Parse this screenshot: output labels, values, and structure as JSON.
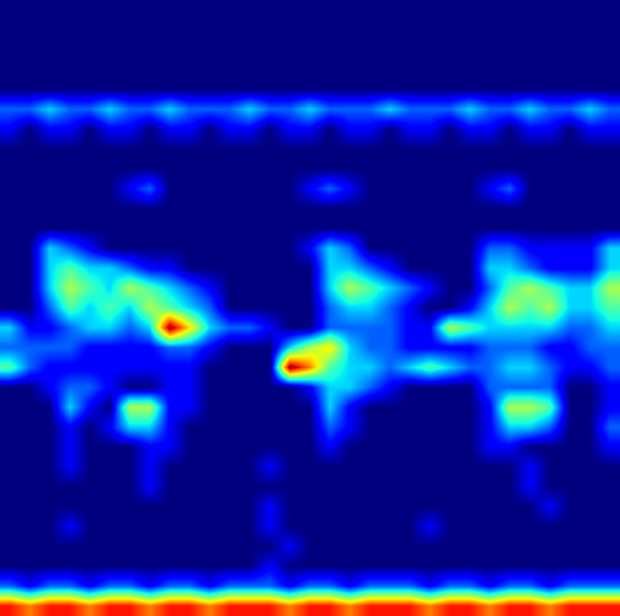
{
  "chart_data": {
    "type": "heatmap",
    "color": "jet",
    "tick_labels": false,
    "cells": [
      [
        0,
        0,
        0,
        0,
        0,
        0,
        0,
        0,
        0,
        0,
        0,
        0,
        0,
        0,
        0,
        0,
        0,
        0,
        0,
        0,
        0,
        0,
        0,
        0,
        0,
        0,
        0,
        0,
        0,
        0,
        0
      ],
      [
        0,
        0,
        0,
        0,
        0,
        0,
        0,
        0,
        0,
        0,
        0,
        0,
        0,
        0,
        0,
        0,
        0,
        0,
        0,
        0,
        0,
        0,
        0,
        0,
        0,
        0,
        0,
        0,
        0,
        0,
        0
      ],
      [
        0,
        0,
        0,
        0,
        0,
        0,
        0,
        0,
        0,
        0,
        0,
        0,
        0,
        0,
        0,
        0,
        0,
        0,
        0,
        0,
        0,
        0,
        0,
        0,
        0,
        0,
        0,
        0,
        0,
        0,
        0
      ],
      [
        0,
        0,
        0,
        0,
        0,
        0,
        0,
        0,
        0,
        0,
        0,
        0,
        0,
        0,
        0,
        0,
        0,
        0,
        0,
        0,
        0,
        0,
        0,
        0,
        0,
        0,
        0,
        0,
        0,
        0,
        0
      ],
      [
        0,
        0,
        0,
        0,
        0,
        0,
        0,
        0,
        0,
        0,
        0,
        0,
        0,
        0,
        0,
        0,
        0,
        0,
        0,
        0,
        0,
        0,
        0,
        0,
        0,
        0,
        0,
        0,
        0,
        0,
        0
      ],
      [
        2,
        2,
        3,
        2,
        2,
        3,
        2,
        2,
        3,
        2,
        2,
        2,
        3,
        2,
        2,
        3,
        2,
        2,
        2,
        3,
        2,
        2,
        2,
        3,
        2,
        2,
        3,
        2,
        2,
        3,
        2
      ],
      [
        1,
        0,
        1,
        1,
        0,
        1,
        1,
        0,
        1,
        1,
        0,
        1,
        1,
        0,
        1,
        1,
        0,
        1,
        1,
        0,
        1,
        1,
        0,
        1,
        1,
        0,
        1,
        1,
        0,
        1,
        1
      ],
      [
        0,
        0,
        0,
        0,
        0,
        0,
        0,
        0,
        0,
        0,
        0,
        0,
        0,
        0,
        0,
        0,
        0,
        0,
        0,
        0,
        0,
        0,
        0,
        0,
        0,
        0,
        0,
        0,
        0,
        0,
        0
      ],
      [
        0,
        0,
        0,
        0,
        0,
        0,
        0,
        0,
        0,
        0,
        0,
        0,
        0,
        0,
        0,
        0,
        0,
        0,
        0,
        0,
        0,
        0,
        0,
        0,
        0,
        0,
        0,
        0,
        0,
        0,
        0
      ],
      [
        0,
        0,
        0,
        0,
        0,
        0,
        1,
        2,
        0,
        0,
        0,
        0,
        0,
        0,
        0,
        1,
        2,
        1,
        0,
        0,
        0,
        0,
        0,
        0,
        1,
        2,
        0,
        0,
        0,
        0,
        0
      ],
      [
        0,
        0,
        0,
        0,
        0,
        0,
        0,
        0,
        0,
        0,
        0,
        0,
        0,
        0,
        0,
        0,
        0,
        0,
        0,
        0,
        0,
        0,
        0,
        0,
        0,
        0,
        0,
        0,
        0,
        0,
        0
      ],
      [
        0,
        0,
        0,
        0,
        0,
        0,
        0,
        0,
        0,
        0,
        0,
        0,
        0,
        0,
        0,
        0,
        0,
        0,
        0,
        0,
        0,
        0,
        0,
        0,
        0,
        0,
        0,
        0,
        0,
        0,
        0
      ],
      [
        0,
        0,
        3,
        2,
        1,
        0,
        0,
        0,
        0,
        0,
        0,
        0,
        0,
        0,
        0,
        1,
        3,
        2,
        0,
        0,
        0,
        0,
        0,
        0,
        2,
        2,
        1,
        1,
        1,
        1,
        3
      ],
      [
        0,
        0,
        3,
        4,
        3,
        3,
        2,
        1,
        1,
        0,
        0,
        0,
        0,
        0,
        0,
        0,
        3,
        3,
        2,
        1,
        0,
        0,
        0,
        0,
        3,
        3,
        2,
        1,
        1,
        1,
        3
      ],
      [
        0,
        0,
        3,
        5,
        4,
        3,
        5,
        4,
        3,
        2,
        1,
        0,
        0,
        0,
        0,
        0,
        3,
        5,
        4,
        3,
        2,
        1,
        0,
        0,
        2,
        4,
        5,
        4,
        3,
        3,
        5
      ],
      [
        0,
        0,
        2,
        4,
        3,
        4,
        3,
        5,
        4,
        3,
        2,
        0,
        0,
        0,
        0,
        0,
        2,
        3,
        3,
        2,
        1,
        0,
        0,
        1,
        3,
        5,
        4,
        5,
        3,
        3,
        4
      ],
      [
        3,
        1,
        1,
        2,
        3,
        3,
        2,
        3,
        9,
        6,
        3,
        2,
        2,
        1,
        0,
        0,
        2,
        2,
        2,
        2,
        1,
        1,
        5,
        4,
        3,
        3,
        3,
        3,
        2,
        2,
        3
      ],
      [
        2,
        2,
        2,
        2,
        1,
        1,
        1,
        1,
        2,
        2,
        1,
        0,
        0,
        0,
        3,
        5,
        6,
        3,
        2,
        2,
        1,
        1,
        1,
        1,
        2,
        2,
        2,
        1,
        1,
        2,
        2
      ],
      [
        4,
        2,
        1,
        1,
        1,
        1,
        1,
        1,
        1,
        1,
        0,
        0,
        0,
        0,
        9,
        7,
        4,
        3,
        3,
        2,
        3,
        4,
        3,
        2,
        2,
        3,
        3,
        2,
        1,
        1,
        2
      ],
      [
        0,
        0,
        1,
        2,
        2,
        1,
        0,
        0,
        1,
        1,
        0,
        0,
        0,
        0,
        0,
        1,
        3,
        3,
        2,
        1,
        0,
        0,
        0,
        0,
        2,
        2,
        2,
        2,
        0,
        0,
        1
      ],
      [
        0,
        0,
        0,
        3,
        1,
        0,
        5,
        5,
        1,
        1,
        0,
        0,
        0,
        0,
        0,
        0,
        3,
        1,
        0,
        0,
        0,
        0,
        0,
        0,
        1,
        5,
        5,
        4,
        0,
        0,
        1
      ],
      [
        0,
        0,
        0,
        1,
        0,
        1,
        3,
        3,
        1,
        0,
        0,
        0,
        0,
        0,
        0,
        0,
        2,
        1,
        0,
        0,
        0,
        0,
        0,
        0,
        1,
        3,
        3,
        2,
        0,
        0,
        2
      ],
      [
        0,
        0,
        0,
        1,
        0,
        0,
        0,
        1,
        1,
        0,
        0,
        0,
        0,
        0,
        0,
        0,
        1,
        0,
        0,
        0,
        0,
        0,
        0,
        0,
        1,
        1,
        0,
        0,
        0,
        0,
        1
      ],
      [
        0,
        0,
        0,
        1,
        0,
        0,
        0,
        1,
        0,
        0,
        0,
        0,
        0,
        1,
        0,
        0,
        0,
        0,
        0,
        0,
        0,
        0,
        0,
        0,
        0,
        0,
        1,
        0,
        0,
        0,
        0
      ],
      [
        0,
        0,
        0,
        0,
        0,
        0,
        0,
        1,
        0,
        0,
        0,
        0,
        0,
        0,
        0,
        0,
        0,
        0,
        0,
        0,
        0,
        0,
        0,
        0,
        0,
        0,
        1,
        0,
        0,
        0,
        0
      ],
      [
        0,
        0,
        0,
        0,
        0,
        0,
        0,
        0,
        0,
        0,
        0,
        0,
        0,
        1,
        0,
        0,
        0,
        0,
        0,
        0,
        0,
        0,
        0,
        0,
        0,
        0,
        0,
        1,
        0,
        0,
        0
      ],
      [
        0,
        0,
        0,
        1,
        0,
        0,
        0,
        0,
        0,
        0,
        0,
        0,
        0,
        1,
        0,
        0,
        0,
        0,
        0,
        0,
        0,
        1,
        0,
        0,
        0,
        0,
        0,
        0,
        0,
        0,
        0
      ],
      [
        0,
        0,
        0,
        0,
        0,
        0,
        0,
        0,
        0,
        0,
        0,
        0,
        0,
        0,
        1,
        0,
        0,
        0,
        0,
        0,
        0,
        0,
        0,
        0,
        0,
        0,
        0,
        0,
        0,
        0,
        0
      ],
      [
        0,
        0,
        0,
        0,
        0,
        0,
        0,
        0,
        0,
        0,
        0,
        0,
        0,
        1,
        0,
        0,
        0,
        0,
        0,
        0,
        0,
        0,
        0,
        0,
        0,
        0,
        0,
        0,
        0,
        0,
        0
      ],
      [
        2,
        1,
        2,
        2,
        1,
        2,
        2,
        1,
        2,
        2,
        1,
        2,
        2,
        2,
        1,
        2,
        2,
        1,
        2,
        2,
        2,
        1,
        2,
        2,
        1,
        2,
        2,
        1,
        2,
        2,
        2
      ],
      [
        8,
        7,
        8,
        8,
        7,
        8,
        8,
        7,
        8,
        8,
        7,
        8,
        8,
        8,
        7,
        8,
        8,
        7,
        8,
        8,
        8,
        7,
        8,
        8,
        7,
        8,
        8,
        7,
        8,
        8,
        8
      ]
    ]
  }
}
